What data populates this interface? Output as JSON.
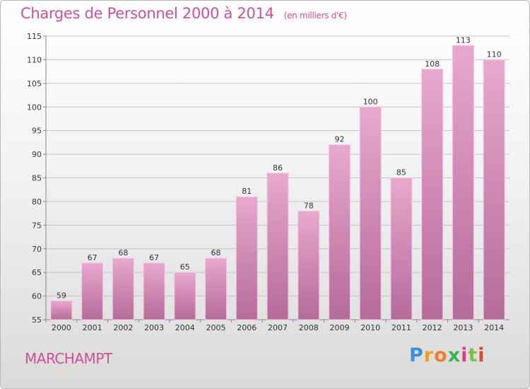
{
  "chart_data": {
    "type": "bar",
    "title": "Charges de Personnel 2000 à 2014",
    "subtitle": "(en milliers d'€)",
    "categories": [
      "2000",
      "2001",
      "2002",
      "2003",
      "2004",
      "2005",
      "2006",
      "2007",
      "2008",
      "2009",
      "2010",
      "2011",
      "2012",
      "2013",
      "2014"
    ],
    "values": [
      59,
      67,
      68,
      67,
      65,
      68,
      81,
      86,
      78,
      92,
      100,
      85,
      108,
      113,
      110
    ],
    "ylim": [
      55,
      115
    ],
    "yticks": [
      55,
      60,
      65,
      70,
      75,
      80,
      85,
      90,
      95,
      100,
      105,
      110,
      115
    ],
    "grid": true,
    "xlabel": "",
    "ylabel": "",
    "bar_color": "#d98cba",
    "data_labels": true
  },
  "commune_name": "MARCHAMPT",
  "logo": {
    "letters": [
      "P",
      "r",
      "o",
      "x",
      "i",
      "t",
      "i"
    ],
    "colors": [
      "#3a8fd8",
      "#f0a020",
      "#f07d2a",
      "#3ab54a",
      "#e03a8a",
      "#7cc242",
      "#e0462f"
    ]
  }
}
